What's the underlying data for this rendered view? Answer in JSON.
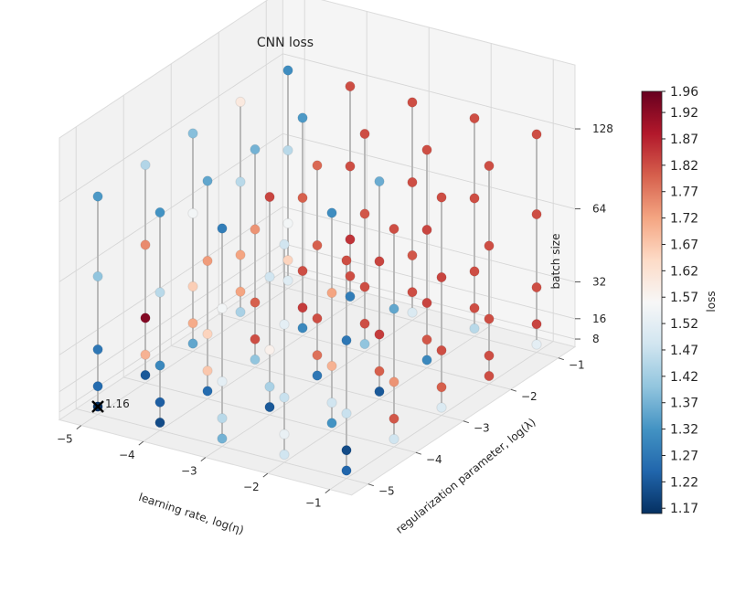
{
  "chart_data": {
    "type": "scatter",
    "title": "CNN loss",
    "xlabel": "learning rate, log(η)",
    "ylabel": "regularization parameter, log(λ)",
    "zlabel": "batch size",
    "x_ticks": [
      "−5",
      "−4",
      "−3",
      "−2",
      "−1"
    ],
    "y_ticks": [
      "−5",
      "−4",
      "−3",
      "−2",
      "−1"
    ],
    "z_ticks": [
      "8",
      "16",
      "32",
      "64",
      "128"
    ],
    "x_values": [
      -5,
      -4,
      -3,
      -2,
      -1
    ],
    "y_values": [
      -5,
      -4,
      -3,
      -2,
      -1
    ],
    "z_values": [
      8,
      16,
      32,
      64,
      128
    ],
    "loss": [
      [
        [
          1.16,
          1.25,
          1.27,
          1.4,
          1.33
        ],
        [
          1.22,
          1.7,
          1.93,
          1.75,
          1.44
        ],
        [
          1.35,
          1.71,
          1.66,
          1.55,
          1.39
        ],
        [
          1.43,
          1.72,
          1.72,
          1.45,
          1.6
        ],
        [
          1.51,
          1.65,
          1.55,
          1.45,
          1.31
        ]
      ],
      [
        [
          1.2,
          1.23,
          1.3,
          1.45,
          1.32
        ],
        [
          1.25,
          1.67,
          1.65,
          1.73,
          1.35
        ],
        [
          1.4,
          1.82,
          1.8,
          1.74,
          1.37
        ],
        [
          1.3,
          1.84,
          1.82,
          1.8,
          1.33
        ],
        [
          1.28,
          1.82,
          1.85,
          1.82,
          1.82
        ]
      ],
      [
        [
          1.37,
          1.45,
          1.52,
          1.55,
          1.28
        ],
        [
          1.22,
          1.43,
          1.58,
          1.48,
          1.83
        ],
        [
          1.27,
          1.78,
          1.82,
          1.8,
          1.79
        ],
        [
          1.4,
          1.82,
          1.82,
          1.81,
          1.82
        ],
        [
          1.5,
          1.82,
          1.81,
          1.82,
          1.82
        ]
      ],
      [
        [
          1.48,
          1.53,
          1.47,
          1.52,
          1.48
        ],
        [
          1.32,
          1.48,
          1.7,
          1.72,
          1.31
        ],
        [
          1.22,
          1.8,
          1.84,
          1.83,
          1.36
        ],
        [
          1.3,
          1.81,
          1.83,
          1.83,
          1.82
        ],
        [
          1.45,
          1.82,
          1.82,
          1.82,
          1.82
        ]
      ],
      [
        [
          1.24,
          1.2,
          1.47,
          1.27,
          1.82
        ],
        [
          1.48,
          1.81,
          1.74,
          1.35,
          1.82
        ],
        [
          1.5,
          1.8,
          1.82,
          1.83,
          1.82
        ],
        [
          1.82,
          1.82,
          1.82,
          1.82,
          1.82
        ],
        [
          1.52,
          1.83,
          1.82,
          1.82,
          1.82
        ]
      ]
    ],
    "min_marker": {
      "x": -5,
      "y": -5,
      "z": 8,
      "label": "1.16"
    },
    "colorbar": {
      "label": "loss",
      "colormap": "RdBu_r",
      "min": 1.16,
      "max": 1.96,
      "tick_values": [
        1.17,
        1.22,
        1.27,
        1.32,
        1.37,
        1.42,
        1.47,
        1.52,
        1.57,
        1.62,
        1.67,
        1.72,
        1.77,
        1.82,
        1.87,
        1.92,
        1.96
      ],
      "tick_labels": [
        "1.17",
        "1.22",
        "1.27",
        "1.32",
        "1.37",
        "1.42",
        "1.47",
        "1.52",
        "1.57",
        "1.62",
        "1.67",
        "1.72",
        "1.77",
        "1.82",
        "1.87",
        "1.92",
        "1.96"
      ]
    },
    "grid": true
  }
}
